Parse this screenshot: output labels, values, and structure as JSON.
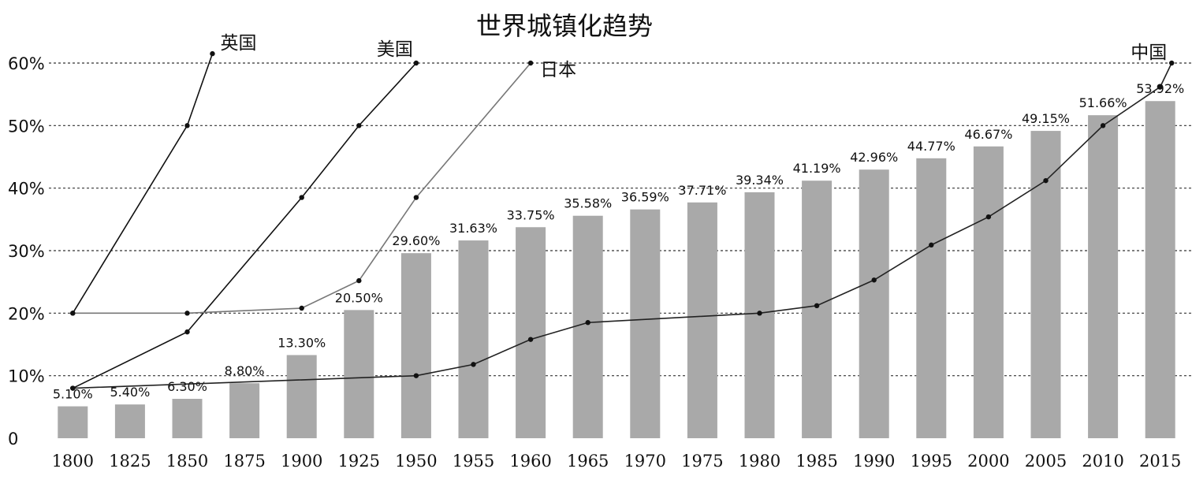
{
  "chart_data": {
    "type": "bar+line",
    "title": "世界城镇化趋势",
    "categories": [
      "1800",
      "1825",
      "1850",
      "1875",
      "1900",
      "1925",
      "1950",
      "1955",
      "1960",
      "1965",
      "1970",
      "1975",
      "1980",
      "1985",
      "1990",
      "1995",
      "2000",
      "2005",
      "2010",
      "2015"
    ],
    "ytick_labels": [
      "0",
      "10%",
      "20%",
      "30%",
      "40%",
      "50%",
      "60%"
    ],
    "ylim": [
      0,
      60
    ],
    "grid": "dashed horizontal",
    "bar_color": "#a9a9a9",
    "bars": {
      "values": [
        5.1,
        5.4,
        6.3,
        8.8,
        13.3,
        20.5,
        29.6,
        31.63,
        33.75,
        35.58,
        36.59,
        37.71,
        39.34,
        41.19,
        42.96,
        44.77,
        46.67,
        49.15,
        51.66,
        53.92
      ],
      "labels": [
        "5.10%",
        "5.40%",
        "6.30%",
        "8.80%",
        "13.30%",
        "20.50%",
        "29.60%",
        "31.63%",
        "33.75%",
        "35.58%",
        "36.59%",
        "37.71%",
        "39.34%",
        "41.19%",
        "42.96%",
        "44.77%",
        "46.67%",
        "49.15%",
        "51.66%",
        "53.92%"
      ]
    },
    "series": [
      {
        "name": "英国",
        "color": "#111111",
        "points": [
          [
            "1800",
            20
          ],
          [
            "1850",
            50
          ],
          [
            "1861",
            61.5
          ]
        ]
      },
      {
        "name": "美国",
        "color": "#111111",
        "points": [
          [
            "1800",
            8
          ],
          [
            "1850",
            17
          ],
          [
            "1900",
            38.5
          ],
          [
            "1925",
            50
          ],
          [
            "1950",
            60
          ]
        ]
      },
      {
        "name": "日本",
        "color": "#777777",
        "points": [
          [
            "1800",
            20
          ],
          [
            "1850",
            20
          ],
          [
            "1900",
            20.8
          ],
          [
            "1925",
            25.2
          ],
          [
            "1950",
            38.5
          ],
          [
            "1960",
            60
          ]
        ]
      },
      {
        "name": "中国",
        "color": "#222222",
        "points": [
          [
            "1800",
            8
          ],
          [
            "1950",
            10
          ],
          [
            "1955",
            11.8
          ],
          [
            "1960",
            15.8
          ],
          [
            "1965",
            18.5
          ],
          [
            "1980",
            20
          ],
          [
            "1985",
            21.2
          ],
          [
            "1990",
            25.3
          ],
          [
            "1995",
            30.9
          ],
          [
            "2000",
            35.4
          ],
          [
            "2005",
            41.2
          ],
          [
            "2010",
            50
          ],
          [
            "2015",
            56.2
          ],
          [
            "2016",
            60
          ]
        ]
      }
    ]
  }
}
